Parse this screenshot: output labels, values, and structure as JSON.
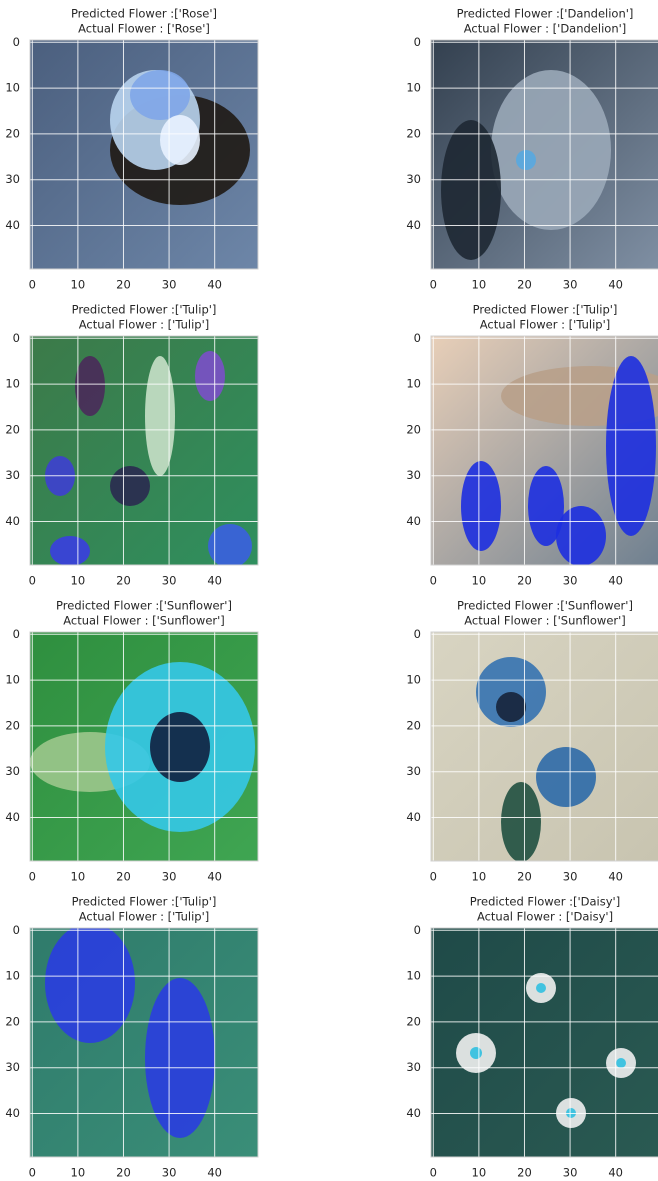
{
  "axes": {
    "xlim": [
      -0.5,
      49.5
    ],
    "ylim": [
      49.5,
      -0.5
    ],
    "xticks": [
      0,
      10,
      20,
      30,
      40
    ],
    "yticks": [
      0,
      10,
      20,
      30,
      40
    ],
    "grid": true
  },
  "panels": [
    {
      "predicted": "Predicted Flower :['Rose']",
      "actual": "Actual Flower : ['Rose']"
    },
    {
      "predicted": "Predicted Flower :['Dandelion']",
      "actual": "Actual Flower : ['Dandelion']"
    },
    {
      "predicted": "Predicted Flower :['Tulip']",
      "actual": "Actual Flower : ['Tulip']"
    },
    {
      "predicted": "Predicted Flower :['Tulip']",
      "actual": "Actual Flower : ['Tulip']"
    },
    {
      "predicted": "Predicted Flower :['Sunflower']",
      "actual": "Actual Flower : ['Sunflower']"
    },
    {
      "predicted": "Predicted Flower :['Sunflower']",
      "actual": "Actual Flower : ['Sunflower']"
    },
    {
      "predicted": "Predicted Flower :['Tulip']",
      "actual": "Actual Flower : ['Tulip']"
    },
    {
      "predicted": "Predicted Flower :['Daisy']",
      "actual": "Actual Flower : ['Daisy']"
    }
  ]
}
